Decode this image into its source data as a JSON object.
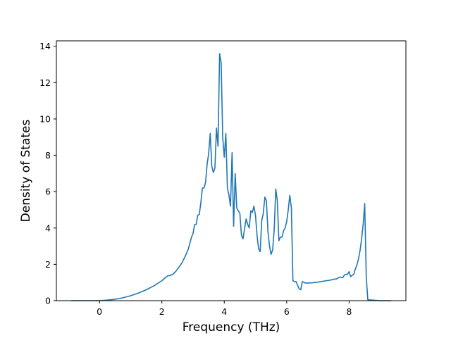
{
  "chart_data": {
    "type": "line",
    "xlabel": "Frequency (THz)",
    "ylabel": "Density of States",
    "xlim": [
      -1.38,
      9.82
    ],
    "ylim": [
      0,
      14.3
    ],
    "grid": false,
    "legend": "none",
    "x_ticks": [
      0,
      2,
      4,
      6,
      8
    ],
    "y_ticks": [
      0,
      2,
      4,
      6,
      8,
      10,
      12,
      14
    ],
    "line_color": "#1f77b4",
    "series": [
      {
        "x": [
          -0.9,
          -0.5,
          0.0,
          0.25,
          0.5,
          0.75,
          1.0,
          1.25,
          1.5,
          1.75,
          2.0,
          2.1,
          2.2,
          2.25,
          2.35,
          2.45,
          2.55,
          2.65,
          2.75,
          2.85,
          2.95,
          3.0,
          3.05,
          3.1,
          3.15,
          3.2,
          3.25,
          3.3,
          3.35,
          3.4,
          3.45,
          3.5,
          3.55,
          3.6,
          3.65,
          3.7,
          3.75,
          3.8,
          3.85,
          3.9,
          3.95,
          4.0,
          4.05,
          4.1,
          4.15,
          4.2,
          4.25,
          4.3,
          4.35,
          4.4,
          4.5,
          4.55,
          4.6,
          4.7,
          4.75,
          4.8,
          4.85,
          4.9,
          4.95,
          5.0,
          5.05,
          5.1,
          5.15,
          5.2,
          5.25,
          5.3,
          5.35,
          5.4,
          5.45,
          5.5,
          5.55,
          5.6,
          5.65,
          5.7,
          5.75,
          5.8,
          5.85,
          5.9,
          5.95,
          6.0,
          6.05,
          6.1,
          6.15,
          6.2,
          6.25,
          6.3,
          6.4,
          6.45,
          6.5,
          6.6,
          6.8,
          7.0,
          7.2,
          7.4,
          7.5,
          7.6,
          7.7,
          7.8,
          7.85,
          7.9,
          7.95,
          8.0,
          8.05,
          8.1,
          8.15,
          8.2,
          8.25,
          8.3,
          8.35,
          8.4,
          8.45,
          8.5,
          8.55,
          8.6,
          9.0,
          9.35
        ],
        "y": [
          0.0,
          0.0,
          0.0,
          0.03,
          0.08,
          0.16,
          0.27,
          0.42,
          0.6,
          0.82,
          1.1,
          1.25,
          1.38,
          1.38,
          1.45,
          1.62,
          1.85,
          2.1,
          2.45,
          2.85,
          3.5,
          3.7,
          4.2,
          4.2,
          4.7,
          4.75,
          5.4,
          6.2,
          6.2,
          6.5,
          7.5,
          8.1,
          9.2,
          7.4,
          7.05,
          7.3,
          9.5,
          8.5,
          13.6,
          13.1,
          9.0,
          7.9,
          9.2,
          6.2,
          5.8,
          5.2,
          8.15,
          4.1,
          7.0,
          5.1,
          4.8,
          3.6,
          3.4,
          4.5,
          4.2,
          4.0,
          4.95,
          4.85,
          5.2,
          4.7,
          3.6,
          2.85,
          2.7,
          4.4,
          4.8,
          5.7,
          5.5,
          3.8,
          3.0,
          2.55,
          2.8,
          3.9,
          6.15,
          5.5,
          3.3,
          3.5,
          3.5,
          3.85,
          4.0,
          4.35,
          5.0,
          5.8,
          5.1,
          1.1,
          1.05,
          1.05,
          0.65,
          0.6,
          1.05,
          0.97,
          0.98,
          1.02,
          1.08,
          1.13,
          1.18,
          1.2,
          1.3,
          1.27,
          1.42,
          1.45,
          1.45,
          1.6,
          1.32,
          1.4,
          1.45,
          1.75,
          1.95,
          2.3,
          2.75,
          3.4,
          4.2,
          5.35,
          1.3,
          0.05,
          0.0,
          0.0
        ]
      }
    ]
  }
}
